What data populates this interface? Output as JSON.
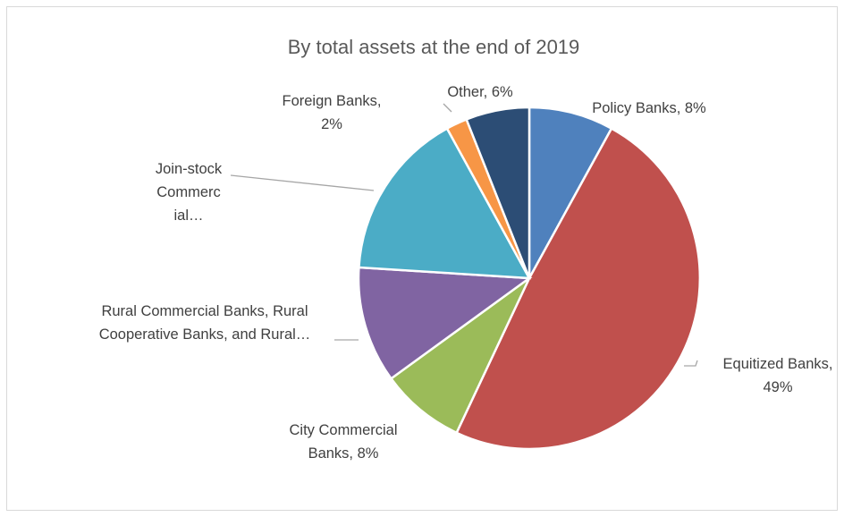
{
  "chart_data": {
    "type": "pie",
    "title": "By total assets at the end of 2019",
    "slices": [
      {
        "name": "Policy Banks",
        "value": 8,
        "color": "#4f81bd",
        "label_lines": [
          "Policy Banks, 8%"
        ]
      },
      {
        "name": "Equitized Banks",
        "value": 49,
        "color": "#c0504d",
        "label_lines": [
          "Equitized Banks,",
          "49%"
        ]
      },
      {
        "name": "City Commercial Banks",
        "value": 8,
        "color": "#9bbb59",
        "label_lines": [
          "City Commercial",
          "Banks, 8%"
        ]
      },
      {
        "name": "Rural Commercial Banks, Rural Cooperative Banks, and Rural…",
        "value": 11,
        "color": "#8064a2",
        "label_lines": [
          "Rural Commercial Banks, Rural",
          "Cooperative Banks, and Rural…"
        ]
      },
      {
        "name": "Join-stock Commercial…",
        "value": 16,
        "color": "#4bacc6",
        "label_lines": [
          "Join-stock",
          "Commerc",
          "ial…"
        ]
      },
      {
        "name": "Foreign Banks",
        "value": 2,
        "color": "#f79646",
        "label_lines": [
          "Foreign Banks,",
          "2%"
        ]
      },
      {
        "name": "Other",
        "value": 6,
        "color": "#2c4d75",
        "label_lines": [
          "Other, 6%"
        ]
      }
    ]
  }
}
